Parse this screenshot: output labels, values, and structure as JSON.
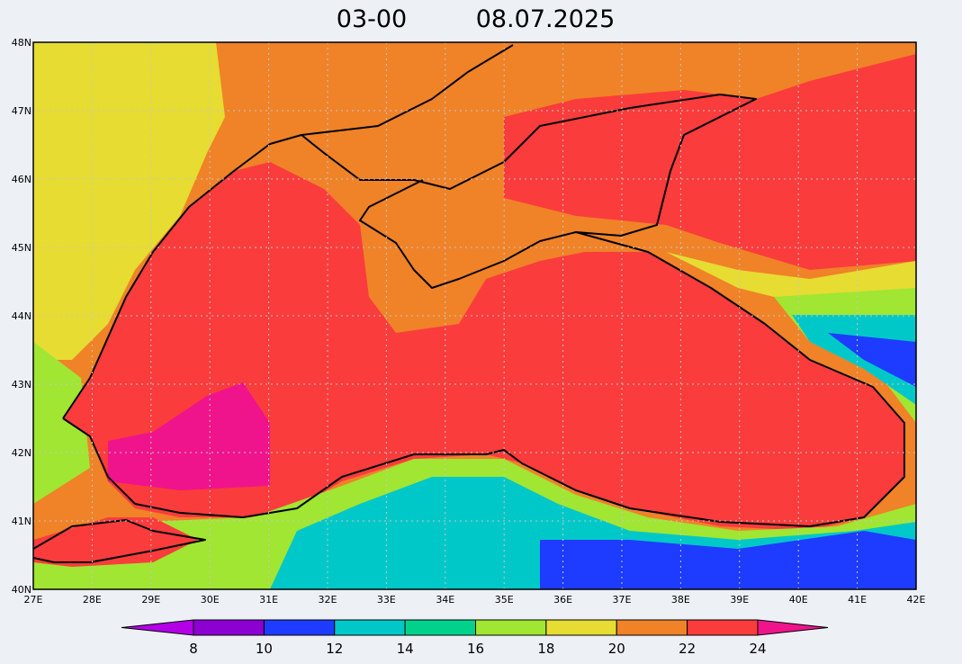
{
  "title": {
    "time": "03-00",
    "date": "08.07.2025"
  },
  "lat_labels": [
    "48N",
    "47N",
    "46N",
    "45N",
    "44N",
    "43N",
    "42N",
    "41N",
    "40N"
  ],
  "lon_labels": [
    "27E",
    "28E",
    "29E",
    "30E",
    "31E",
    "32E",
    "33E",
    "34E",
    "35E",
    "36E",
    "37E",
    "38E",
    "39E",
    "40E",
    "41E",
    "42E"
  ],
  "colorbar": {
    "labels": [
      8,
      10,
      12,
      14,
      16,
      18,
      20,
      22,
      24
    ],
    "colors": [
      "#b400e6",
      "#8c00d2",
      "#1e3cff",
      "#00c8c8",
      "#00d28c",
      "#a0e632",
      "#e6dc32",
      "#f08228",
      "#fa3c3c",
      "#f0148c"
    ]
  }
}
